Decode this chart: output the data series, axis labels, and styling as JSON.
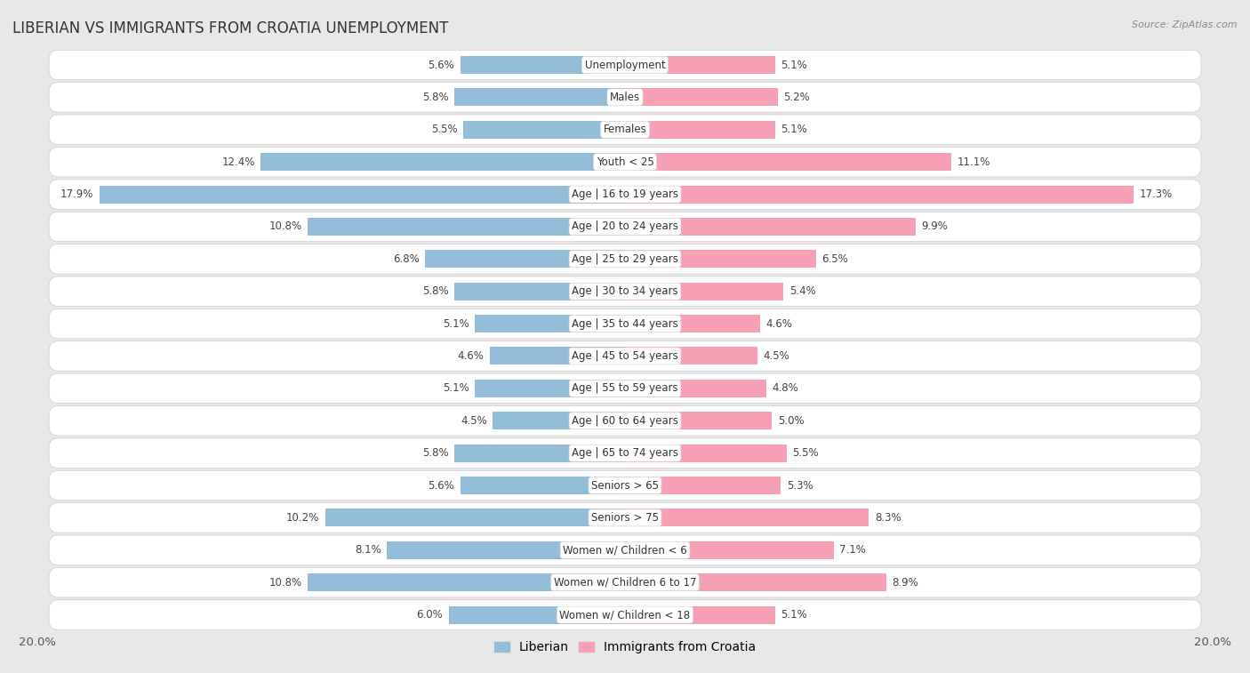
{
  "title": "LIBERIAN VS IMMIGRANTS FROM CROATIA UNEMPLOYMENT",
  "source": "Source: ZipAtlas.com",
  "categories": [
    "Unemployment",
    "Males",
    "Females",
    "Youth < 25",
    "Age | 16 to 19 years",
    "Age | 20 to 24 years",
    "Age | 25 to 29 years",
    "Age | 30 to 34 years",
    "Age | 35 to 44 years",
    "Age | 45 to 54 years",
    "Age | 55 to 59 years",
    "Age | 60 to 64 years",
    "Age | 65 to 74 years",
    "Seniors > 65",
    "Seniors > 75",
    "Women w/ Children < 6",
    "Women w/ Children 6 to 17",
    "Women w/ Children < 18"
  ],
  "liberian": [
    5.6,
    5.8,
    5.5,
    12.4,
    17.9,
    10.8,
    6.8,
    5.8,
    5.1,
    4.6,
    5.1,
    4.5,
    5.8,
    5.6,
    10.2,
    8.1,
    10.8,
    6.0
  ],
  "croatia": [
    5.1,
    5.2,
    5.1,
    11.1,
    17.3,
    9.9,
    6.5,
    5.4,
    4.6,
    4.5,
    4.8,
    5.0,
    5.5,
    5.3,
    8.3,
    7.1,
    8.9,
    5.1
  ],
  "liberian_color": "#92bcd8",
  "croatia_color": "#f5a0b5",
  "background_color": "#e8e8e8",
  "row_color": "#ffffff",
  "xlim": 20.0,
  "bar_height": 0.55,
  "label_fontsize": 8.5,
  "category_fontsize": 8.5,
  "title_fontsize": 12,
  "legend_label_liberian": "Liberian",
  "legend_label_croatia": "Immigrants from Croatia"
}
